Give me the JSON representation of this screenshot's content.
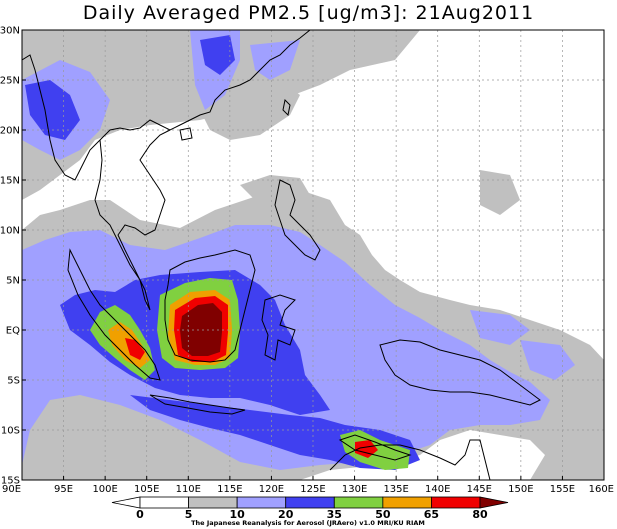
{
  "title": "Daily Averaged PM2.5 [ug/m3]: 21Aug2011",
  "credit": "The Japanese Reanalysis for Aerosol (JRAero) v1.0 MRI/KU RIAM",
  "map": {
    "lon_range": [
      90,
      160
    ],
    "lat_range": [
      -15,
      30
    ],
    "grid": true,
    "lat_ticks": [
      {
        "value": 30,
        "label": "30N"
      },
      {
        "value": 25,
        "label": "25N"
      },
      {
        "value": 20,
        "label": "20N"
      },
      {
        "value": 15,
        "label": "15N"
      },
      {
        "value": 10,
        "label": "10N"
      },
      {
        "value": 5,
        "label": "5N"
      },
      {
        "value": 0,
        "label": "EQ"
      },
      {
        "value": -5,
        "label": "5S"
      },
      {
        "value": -10,
        "label": "10S"
      },
      {
        "value": -15,
        "label": "15S"
      }
    ],
    "lon_ticks": [
      {
        "value": 90,
        "label": "90E"
      },
      {
        "value": 95,
        "label": "95E"
      },
      {
        "value": 100,
        "label": "100E"
      },
      {
        "value": 105,
        "label": "105E"
      },
      {
        "value": 110,
        "label": "110E"
      },
      {
        "value": 115,
        "label": "115E"
      },
      {
        "value": 120,
        "label": "120E"
      },
      {
        "value": 125,
        "label": "125E"
      },
      {
        "value": 130,
        "label": "130E"
      },
      {
        "value": 135,
        "label": "135E"
      },
      {
        "value": 140,
        "label": "140E"
      },
      {
        "value": 145,
        "label": "145E"
      },
      {
        "value": 150,
        "label": "150E"
      },
      {
        "value": 155,
        "label": "155E"
      },
      {
        "value": 160,
        "label": "160E"
      }
    ]
  },
  "colorbar": {
    "levels": [
      "0",
      "5",
      "10",
      "20",
      "35",
      "50",
      "65",
      "80"
    ],
    "colors": [
      "#ffffff",
      "#ffffff",
      "#c0c0c0",
      "#a0a0ff",
      "#4040f0",
      "#80d040",
      "#f0a000",
      "#f00000",
      "#800000"
    ]
  },
  "palette": {
    "c10": "#c0c0c0",
    "c20": "#a0a0ff",
    "c35": "#4040f0",
    "c50": "#80d040",
    "c65": "#f0a000",
    "c80": "#f00000",
    "cmax": "#800000"
  }
}
